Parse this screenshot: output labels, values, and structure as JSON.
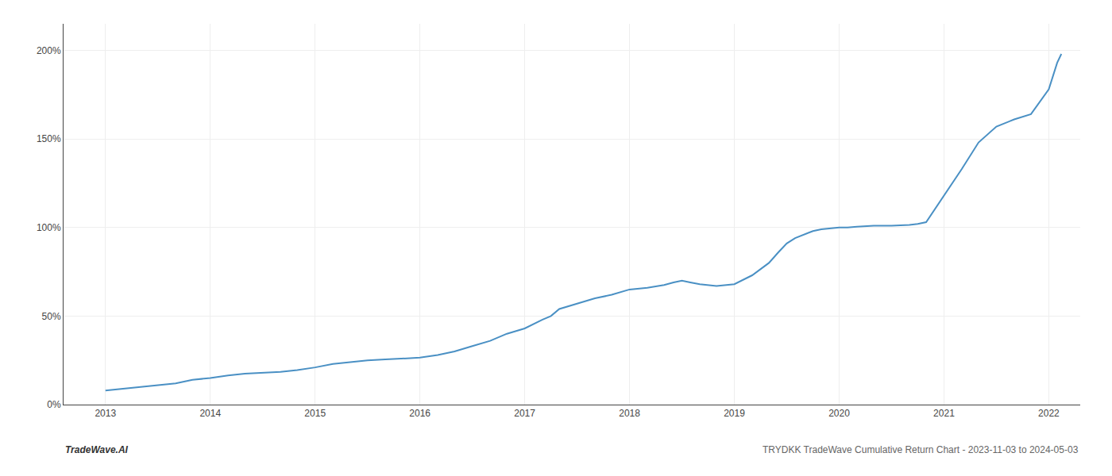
{
  "chart_data": {
    "type": "line",
    "annotations": [
      "TradeWave.AI",
      "TRYDKK TradeWave Cumulative Return Chart - 2023-11-03 to 2024-05-03"
    ],
    "x": [
      2013.0,
      2013.08,
      2013.17,
      2013.25,
      2013.33,
      2013.5,
      2013.67,
      2013.75,
      2013.83,
      2014.0,
      2014.17,
      2014.33,
      2014.5,
      2014.67,
      2014.83,
      2015.0,
      2015.17,
      2015.33,
      2015.5,
      2015.67,
      2015.83,
      2016.0,
      2016.17,
      2016.33,
      2016.5,
      2016.67,
      2016.83,
      2017.0,
      2017.17,
      2017.25,
      2017.33,
      2017.5,
      2017.67,
      2017.83,
      2018.0,
      2018.17,
      2018.33,
      2018.42,
      2018.5,
      2018.58,
      2018.67,
      2018.83,
      2019.0,
      2019.17,
      2019.33,
      2019.42,
      2019.5,
      2019.58,
      2019.67,
      2019.75,
      2019.83,
      2020.0,
      2020.08,
      2020.17,
      2020.33,
      2020.5,
      2020.67,
      2020.75,
      2020.83,
      2021.0,
      2021.17,
      2021.33,
      2021.5,
      2021.67,
      2021.83,
      2022.0,
      2022.08,
      2022.12
    ],
    "values": [
      8,
      8.5,
      9,
      9.5,
      10,
      11,
      12,
      13,
      14,
      15,
      16.5,
      17.5,
      18,
      18.5,
      19.5,
      21,
      23,
      24,
      25,
      25.5,
      26,
      26.5,
      28,
      30,
      33,
      36,
      40,
      43,
      48,
      50,
      54,
      57,
      60,
      62,
      65,
      66,
      67.5,
      69,
      70,
      69,
      68,
      67,
      68,
      73,
      80,
      86,
      91,
      94,
      96,
      98,
      99,
      100,
      100,
      100.5,
      101,
      101,
      101.5,
      102,
      103,
      118,
      133,
      148,
      157,
      161,
      164,
      178,
      193,
      198
    ],
    "color": "#4a90c4",
    "xlim": [
      2012.6,
      2022.3
    ],
    "xticks": [
      2013,
      2014,
      2015,
      2016,
      2017,
      2018,
      2019,
      2020,
      2021,
      2022
    ],
    "ylim": [
      0,
      215
    ],
    "yticks": [
      {
        "value": 0,
        "label": "0%"
      },
      {
        "value": 50,
        "label": "50%"
      },
      {
        "value": 100,
        "label": "100%"
      },
      {
        "value": 150,
        "label": "150%"
      },
      {
        "value": 200,
        "label": "200%"
      }
    ],
    "grid": true
  }
}
